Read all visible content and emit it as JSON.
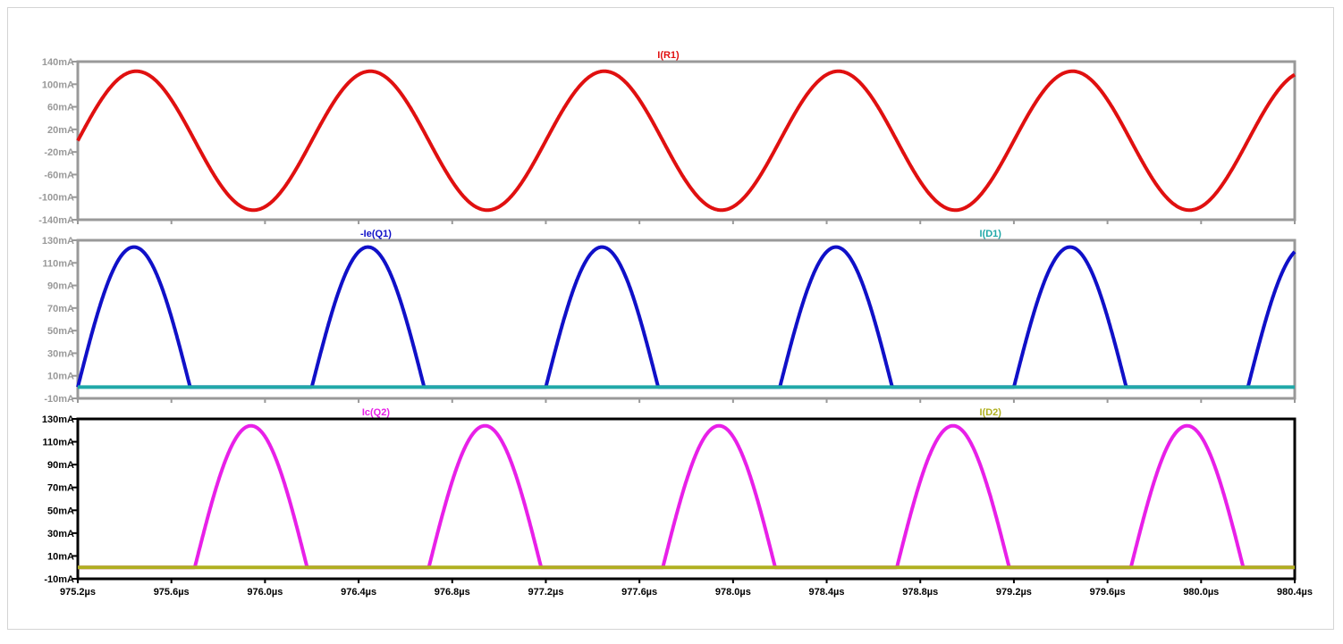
{
  "chart_data": [
    {
      "type": "line",
      "title": "I(R1)",
      "colors": {
        "frame": "#999999",
        "axis_text": "#999999"
      },
      "x": {
        "min": 975.2,
        "max": 980.4,
        "ticks": [
          "975.2µs",
          "975.6µs",
          "976.0µs",
          "976.4µs",
          "976.8µs",
          "977.2µs",
          "977.6µs",
          "978.0µs",
          "978.4µs",
          "978.8µs",
          "979.2µs",
          "979.6µs",
          "980.0µs",
          "980.4µs"
        ],
        "show_labels": false
      },
      "y": {
        "min": -140,
        "max": 140,
        "unit": "mA",
        "ticks": [
          "140mA",
          "100mA",
          "60mA",
          "20mA",
          "-20mA",
          "-60mA",
          "-100mA",
          "-140mA"
        ]
      },
      "series": [
        {
          "name": "I(R1)",
          "color": "#e01010",
          "kind": "sine",
          "amplitude": 123,
          "period": 1.0,
          "phase_origin": 975.2,
          "label_position": "center"
        }
      ]
    },
    {
      "type": "line",
      "title": "-Ie(Q1) / I(D1)",
      "colors": {
        "frame": "#999999",
        "axis_text": "#999999"
      },
      "x": {
        "min": 975.2,
        "max": 980.4,
        "show_labels": false
      },
      "y": {
        "min": -10,
        "max": 130,
        "unit": "mA",
        "ticks": [
          "130mA",
          "110mA",
          "90mA",
          "70mA",
          "50mA",
          "30mA",
          "10mA",
          "-10mA"
        ]
      },
      "series": [
        {
          "name": "-Ie(Q1)",
          "color": "#1010c8",
          "kind": "pulse",
          "peak": 124,
          "period": 1.0,
          "on_start_offset": 0.0,
          "on_duration": 0.48,
          "phase_origin": 975.2,
          "label_position": "left"
        },
        {
          "name": "I(D1)",
          "color": "#20a8a8",
          "kind": "flat",
          "value": 0,
          "label_position": "right"
        }
      ]
    },
    {
      "type": "line",
      "title": "Ic(Q2) / I(D2)",
      "colors": {
        "frame": "#000000",
        "axis_text": "#000000"
      },
      "x": {
        "min": 975.2,
        "max": 980.4,
        "show_labels": true,
        "ticks": [
          "975.2µs",
          "975.6µs",
          "976.0µs",
          "976.4µs",
          "976.8µs",
          "977.2µs",
          "977.6µs",
          "978.0µs",
          "978.4µs",
          "978.8µs",
          "979.2µs",
          "979.6µs",
          "980.0µs",
          "980.4µs"
        ]
      },
      "y": {
        "min": -10,
        "max": 130,
        "unit": "mA",
        "ticks": [
          "130mA",
          "110mA",
          "90mA",
          "70mA",
          "50mA",
          "30mA",
          "10mA",
          "-10mA"
        ]
      },
      "series": [
        {
          "name": "Ic(Q2)",
          "color": "#e820e8",
          "kind": "pulse",
          "peak": 124,
          "period": 1.0,
          "on_start_offset": 0.5,
          "on_duration": 0.48,
          "phase_origin": 975.2,
          "label_position": "left"
        },
        {
          "name": "I(D2)",
          "color": "#b0b020",
          "kind": "flat",
          "value": 0,
          "label_position": "right"
        }
      ]
    }
  ]
}
